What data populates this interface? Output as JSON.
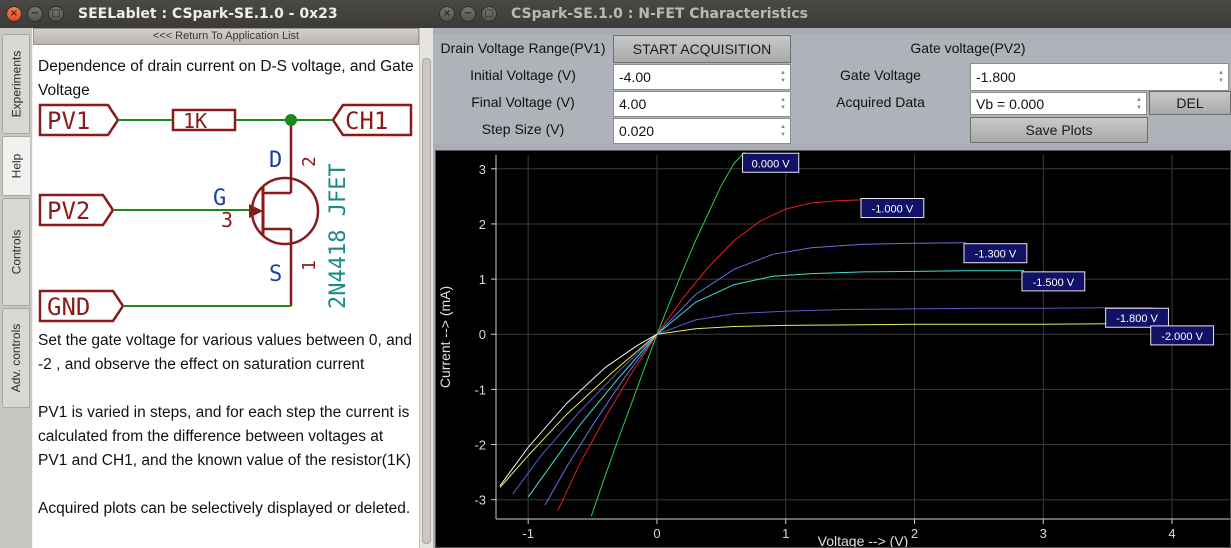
{
  "win1": {
    "title": "SEELablet : CSpark-SE.1.0 - 0x23",
    "return_label": "<<< Return To Application List",
    "tabs": [
      "Experiments",
      "Help",
      "Controls",
      "Adv. controls"
    ],
    "intro": "Dependence of drain current on D-S voltage, and Gate Voltage",
    "schematic": {
      "pv1": "PV1",
      "r": "1K",
      "ch1": "CH1",
      "pv2": "PV2",
      "gnd": "GND",
      "pin_d": "D",
      "pin_g": "G",
      "pin_s": "S",
      "n2": "2",
      "n3": "3",
      "n1": "1",
      "part": "2N4418 JFET"
    },
    "para1": "Set the gate voltage for various values between 0, and -2 , and observe the effect on saturation current",
    "para2": "PV1 is varied in steps, and for each step the current is calculated from the difference between voltages at PV1 and CH1, and the known value of the resistor(1K)",
    "para3": "Acquired plots can be selectively displayed or deleted."
  },
  "win2": {
    "title": "CSpark-SE.1.0 : N-FET Characteristics",
    "drain_range_label": "Drain Voltage Range(PV1)",
    "start_btn": "START ACQUISITION",
    "gate_header": "Gate voltage(PV2)",
    "initial_label": "Initial Voltage (V)",
    "initial_value": "-4.00",
    "final_label": "Final Voltage (V)",
    "final_value": "4.00",
    "step_label": "Step Size (V)",
    "step_value": "0.020",
    "gate_label": "Gate Voltage",
    "gate_value": "-1.800",
    "acq_label": "Acquired Data",
    "acq_value": "Vb = 0.000",
    "del_btn": "DEL",
    "save_btn": "Save Plots"
  },
  "chart_data": {
    "type": "line",
    "xlabel": "Voltage --> (V)",
    "ylabel": "Current --> (mA)",
    "xlim": [
      -1.25,
      4.45
    ],
    "ylim": [
      -3.35,
      3.25
    ],
    "xticks": [
      -1,
      0,
      1,
      2,
      3,
      4
    ],
    "yticks": [
      -3,
      -2,
      -1,
      0,
      1,
      2,
      3
    ],
    "grid": true,
    "background": "#000000",
    "series": [
      {
        "name": "0.000 V",
        "color": "#2fd04a",
        "x": [
          -0.51,
          -0.4,
          -0.3,
          -0.2,
          -0.1,
          0,
          0.1,
          0.2,
          0.3,
          0.4,
          0.5,
          0.6,
          0.68
        ],
        "y": [
          -3.3,
          -2.55,
          -1.9,
          -1.27,
          -0.63,
          0,
          0.58,
          1.15,
          1.7,
          2.2,
          2.7,
          3.1,
          3.3
        ]
      },
      {
        "name": "-1.000 V",
        "color": "#e02020",
        "x": [
          -0.77,
          -0.6,
          -0.4,
          -0.2,
          0,
          0.2,
          0.4,
          0.6,
          0.8,
          1.0,
          1.2,
          1.4,
          1.6
        ],
        "y": [
          -3.2,
          -2.35,
          -1.5,
          -0.72,
          0,
          0.65,
          1.22,
          1.7,
          2.05,
          2.27,
          2.38,
          2.42,
          2.44
        ]
      },
      {
        "name": "-1.300 V",
        "color": "#6a6ee6",
        "x": [
          -0.87,
          -0.7,
          -0.5,
          -0.25,
          0,
          0.3,
          0.6,
          0.9,
          1.2,
          1.6,
          2.0,
          2.4,
          2.4
        ],
        "y": [
          -3.1,
          -2.4,
          -1.65,
          -0.78,
          0,
          0.72,
          1.18,
          1.45,
          1.57,
          1.63,
          1.65,
          1.66,
          1.66
        ]
      },
      {
        "name": "-1.500 V",
        "color": "#40e0d0",
        "x": [
          -1.0,
          -0.8,
          -0.6,
          -0.3,
          0,
          0.3,
          0.6,
          0.9,
          1.2,
          1.6,
          2.0,
          2.4,
          2.85
        ],
        "y": [
          -2.95,
          -2.3,
          -1.65,
          -0.8,
          0,
          0.58,
          0.9,
          1.05,
          1.1,
          1.13,
          1.14,
          1.15,
          1.15
        ]
      },
      {
        "name": "-1.800 V",
        "color": "#5a5ac8",
        "x": [
          -1.12,
          -0.9,
          -0.6,
          -0.3,
          0,
          0.3,
          0.6,
          1.0,
          1.5,
          2.0,
          2.5,
          3.0,
          3.5,
          3.85
        ],
        "y": [
          -2.9,
          -2.2,
          -1.4,
          -0.68,
          0,
          0.26,
          0.37,
          0.42,
          0.45,
          0.46,
          0.47,
          0.47,
          0.48,
          0.48
        ]
      },
      {
        "name": "-2.000 V",
        "color": "#e8e85a",
        "x": [
          -1.22,
          -1.0,
          -0.7,
          -0.35,
          0,
          0.3,
          0.6,
          1.0,
          1.5,
          2.0,
          2.5,
          3.0,
          3.5,
          3.85
        ],
        "y": [
          -2.78,
          -2.2,
          -1.45,
          -0.7,
          0,
          0.1,
          0.14,
          0.16,
          0.17,
          0.18,
          0.18,
          0.18,
          0.19,
          0.19
        ]
      },
      {
        "name": "",
        "color": "#f0f0f0",
        "x": [
          -1.22,
          -1.0,
          -0.7,
          -0.4,
          -0.15,
          0
        ],
        "y": [
          -2.75,
          -2.05,
          -1.25,
          -0.6,
          -0.2,
          0
        ]
      }
    ],
    "labels": [
      {
        "text": "0.000 V",
        "x": 0.68,
        "y": 3.1
      },
      {
        "text": "-1.000 V",
        "x": 1.6,
        "y": 2.28
      },
      {
        "text": "-1.300 V",
        "x": 2.4,
        "y": 1.46
      },
      {
        "text": "-1.500 V",
        "x": 2.85,
        "y": 0.95
      },
      {
        "text": "-1.800 V",
        "x": 3.5,
        "y": 0.29
      },
      {
        "text": "-2.000 V",
        "x": 3.85,
        "y": -0.03
      }
    ]
  }
}
